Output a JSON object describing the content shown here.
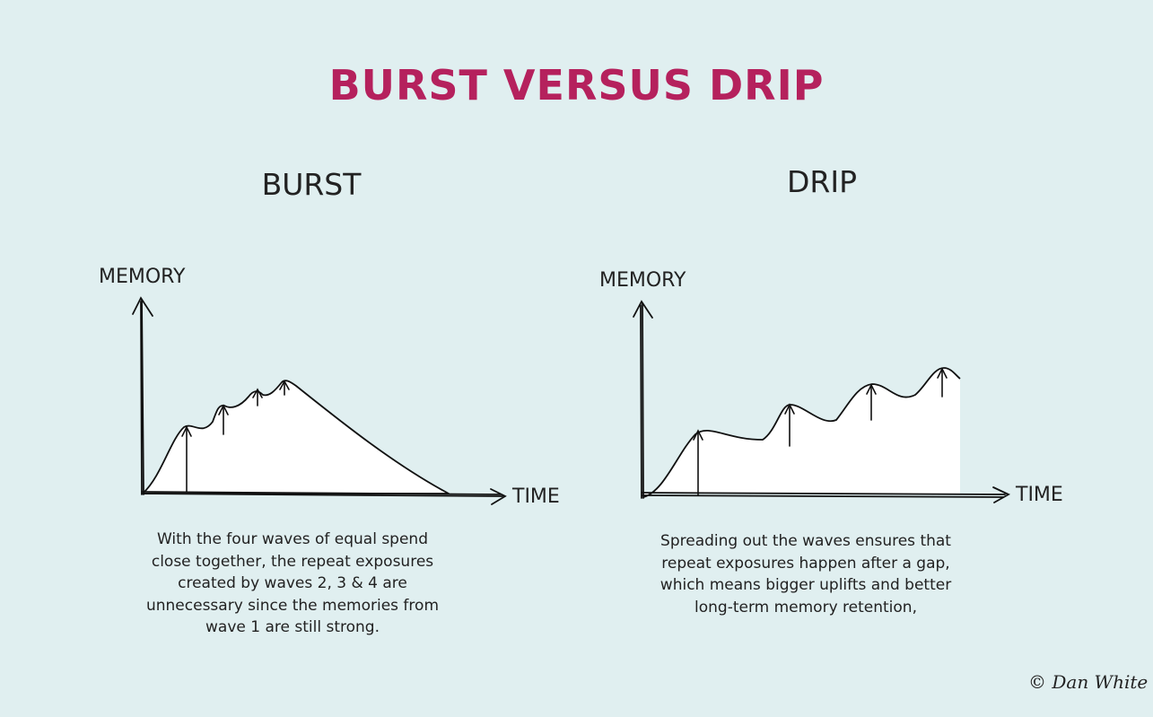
{
  "title": "BURST VERSUS DRIP",
  "panels": {
    "burst": {
      "title": "BURST",
      "ylabel": "MEMORY",
      "xlabel": "TIME",
      "caption_lines": [
        "With the four waves of equal spend",
        "close together, the repeat exposures",
        "created by waves 2, 3 & 4 are",
        "unnecessary since the memories from",
        "wave 1 are still strong."
      ]
    },
    "drip": {
      "title": "DRIP",
      "ylabel": "MEMORY",
      "xlabel": "TIME",
      "caption_lines": [
        "Spreading out the waves ensures that",
        "repeat exposures happen after a gap,",
        "which means bigger uplifts and better",
        "long-term memory retention,"
      ]
    }
  },
  "signature": "© Dan White"
}
